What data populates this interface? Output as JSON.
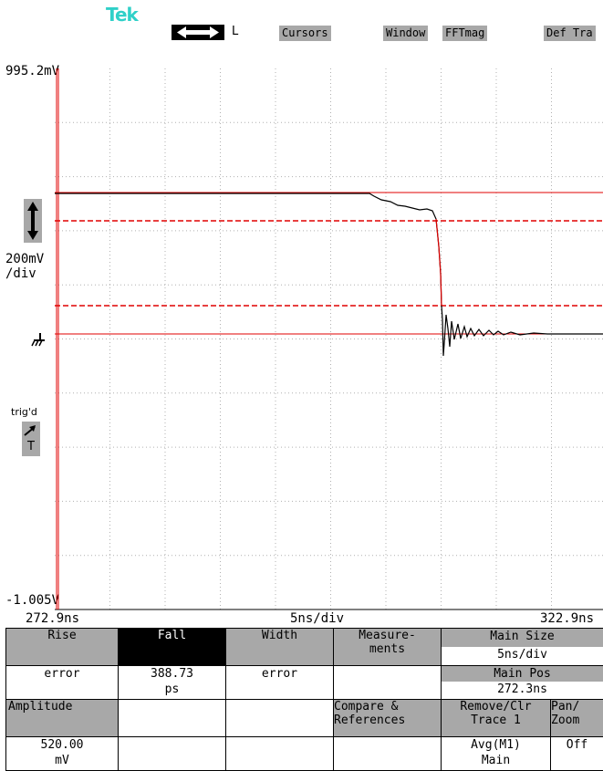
{
  "header": {
    "brand": "Tek",
    "cursor_mode": "L",
    "buttons": [
      "Cursors",
      "Window",
      "FFTmag",
      "Def Tra"
    ]
  },
  "scope": {
    "top_voltage": "995.2mV",
    "bottom_voltage": "-1.005V",
    "vertical_scale": [
      "200mV",
      "/div"
    ],
    "trig_label": "trig'd",
    "trig_marker": "T",
    "time_start": "272.9ns",
    "time_scale": "5ns/div",
    "time_end": "322.9ns"
  },
  "measurements": {
    "row1_headers": [
      "Rise",
      "Fall",
      "Width",
      "Measure-\nments"
    ],
    "row1_values": [
      "error",
      "388.73\nps",
      "error",
      ""
    ],
    "row2_headers": [
      "Amplitude",
      "",
      "",
      "Compare &\nReferences"
    ],
    "row2_values": [
      "520.00\nmV",
      "",
      "",
      ""
    ],
    "main_size_label": "Main Size",
    "main_size_value": "5ns/div",
    "main_pos_label": "Main Pos",
    "main_pos_value": "272.3ns",
    "remove_label": "Remove/Clr\nTrace 1",
    "avg_value": "Avg(M1)\nMain",
    "panzoom_label": "Pan/\nZoom",
    "panzoom_value": "Off"
  },
  "colors": {
    "teal": "#2fd0c8",
    "red": "#e00000",
    "gray": "#a8a8a8",
    "grid": "#b0b0b0"
  }
}
